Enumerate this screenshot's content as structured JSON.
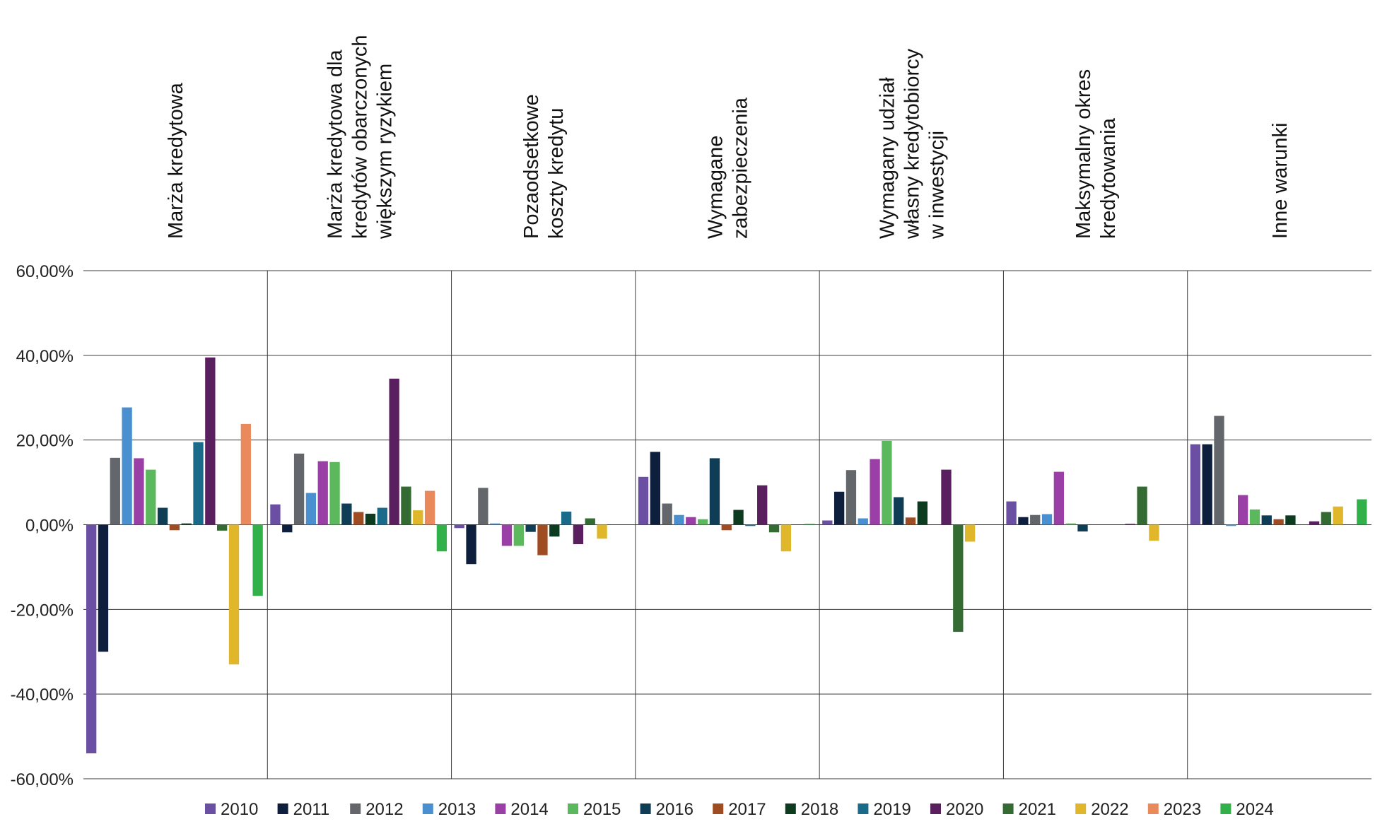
{
  "chart_data": {
    "type": "bar",
    "categories": [
      [
        "Marża kredytowa"
      ],
      [
        "Marża kredytowa dla",
        "kredytów obarczonych",
        "większym ryzykiem"
      ],
      [
        "Pozaodsetkowe",
        "koszty kredytu"
      ],
      [
        "Wymagane",
        "zabezpieczenia"
      ],
      [
        "Wymagany udział",
        "własny kredytobiorcy",
        "w inwestycji"
      ],
      [
        "Maksymalny okres",
        "kredytowania"
      ],
      [
        "Inne warunki"
      ]
    ],
    "ylim": [
      -60,
      60
    ],
    "yticks": [
      60,
      40,
      20,
      0,
      -20,
      -40,
      -60
    ],
    "ytick_labels": [
      "60,00%",
      "40,00%",
      "20,00%",
      "0,00%",
      "-20,00%",
      "-40,00%",
      "-60,00%"
    ],
    "grid": true,
    "legend_position": "bottom",
    "series": [
      {
        "name": "2010",
        "color": "#6a4fa3",
        "values": [
          -54,
          4.8,
          -0.8,
          11.3,
          1.0,
          5.5,
          19.0
        ]
      },
      {
        "name": "2011",
        "color": "#0e1f3d",
        "values": [
          -30,
          -1.8,
          -9.3,
          17.2,
          7.8,
          1.8,
          19.0
        ]
      },
      {
        "name": "2012",
        "color": "#63666a",
        "values": [
          15.8,
          16.8,
          8.7,
          5.0,
          12.9,
          2.3,
          25.7
        ]
      },
      {
        "name": "2013",
        "color": "#4a90d0",
        "values": [
          27.7,
          7.5,
          0.3,
          2.3,
          1.5,
          2.5,
          -0.3
        ]
      },
      {
        "name": "2014",
        "color": "#9a3fa6",
        "values": [
          15.7,
          15.0,
          -5.0,
          1.8,
          15.5,
          12.5,
          7.0
        ]
      },
      {
        "name": "2015",
        "color": "#5cb85c",
        "values": [
          13.0,
          14.8,
          -5.0,
          1.3,
          19.8,
          0.3,
          3.6
        ]
      },
      {
        "name": "2016",
        "color": "#0e3d55",
        "values": [
          4.0,
          5.0,
          -1.7,
          15.7,
          6.5,
          -1.6,
          2.2
        ]
      },
      {
        "name": "2017",
        "color": "#a04c22",
        "values": [
          -1.3,
          3.0,
          -7.2,
          -1.3,
          1.7,
          0,
          1.3
        ]
      },
      {
        "name": "2018",
        "color": "#0c3b1f",
        "values": [
          0.3,
          2.6,
          -2.8,
          3.5,
          5.5,
          0,
          2.2
        ]
      },
      {
        "name": "2019",
        "color": "#1a6b8a",
        "values": [
          19.5,
          4.0,
          3.1,
          -0.3,
          0,
          0,
          0
        ]
      },
      {
        "name": "2020",
        "color": "#5a1f5e",
        "values": [
          39.5,
          34.5,
          -4.6,
          9.3,
          13.0,
          0.2,
          0.8
        ]
      },
      {
        "name": "2021",
        "color": "#336b33",
        "values": [
          -1.4,
          9.0,
          1.5,
          -1.8,
          -25.3,
          9.0,
          3.0
        ]
      },
      {
        "name": "2022",
        "color": "#e0b72a",
        "values": [
          -33,
          3.4,
          -3.3,
          -6.3,
          -4.0,
          -3.8,
          4.3
        ]
      },
      {
        "name": "2023",
        "color": "#ea8a5c",
        "values": [
          23.8,
          8.0,
          0,
          0,
          0,
          0,
          0
        ]
      },
      {
        "name": "2024",
        "color": "#32b04a",
        "values": [
          -16.8,
          -6.3,
          0,
          0.2,
          0,
          0,
          6.0
        ]
      }
    ]
  }
}
